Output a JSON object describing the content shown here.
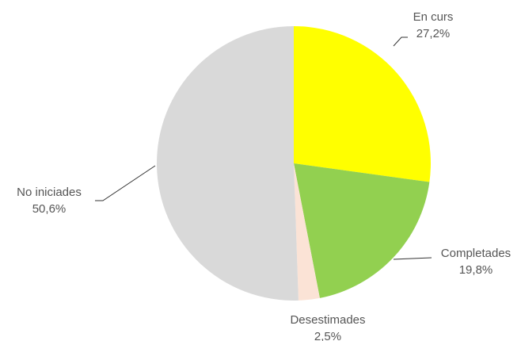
{
  "chart_data": {
    "type": "pie",
    "categories": [
      "En curs",
      "Completades",
      "Desestimades",
      "No iniciades"
    ],
    "values": [
      27.2,
      19.8,
      2.5,
      50.6
    ],
    "value_labels": [
      "27,2%",
      "19,8%",
      "2,5%",
      "50,6%"
    ],
    "colors": [
      "#ffff00",
      "#92d050",
      "#fbe3d6",
      "#d9d9d9"
    ]
  }
}
